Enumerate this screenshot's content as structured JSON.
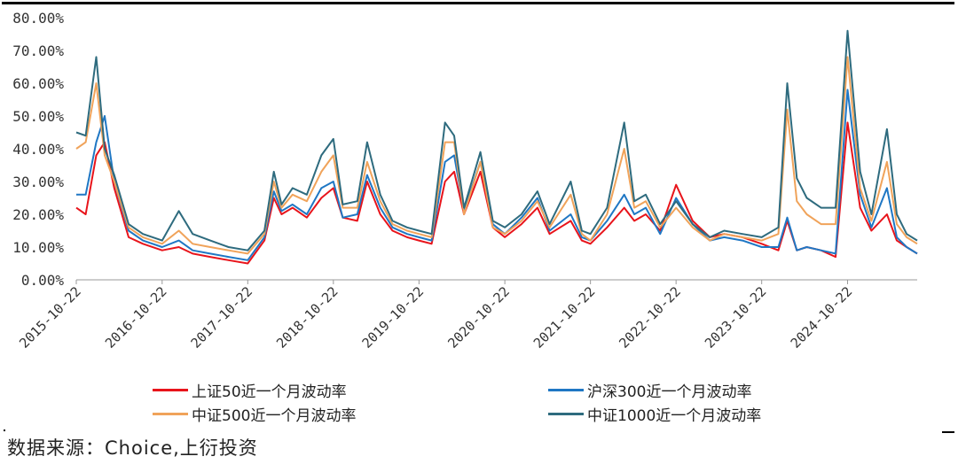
{
  "chart_data": {
    "type": "line",
    "title": "",
    "xlabel": "",
    "ylabel": "",
    "ylim": [
      0,
      0.8
    ],
    "y_ticks": [
      "0.00%",
      "10.00%",
      "20.00%",
      "30.00%",
      "40.00%",
      "50.00%",
      "60.00%",
      "70.00%",
      "80.00%"
    ],
    "x_ticks": [
      "2015-10-22",
      "2016-10-22",
      "2017-10-22",
      "2018-10-22",
      "2019-10-22",
      "2020-10-22",
      "2021-10-22",
      "2022-10-22",
      "2023-10-22",
      "2024-10-22"
    ],
    "x_range": [
      "2015-10-22",
      "2025-08-15"
    ],
    "grid": false,
    "legend_position": "bottom",
    "x": [
      "2015-10-22",
      "2015-12-01",
      "2016-01-15",
      "2016-02-20",
      "2016-04-01",
      "2016-06-01",
      "2016-08-01",
      "2016-10-22",
      "2017-01-01",
      "2017-03-01",
      "2017-05-15",
      "2017-08-01",
      "2017-10-22",
      "2018-01-01",
      "2018-02-10",
      "2018-03-15",
      "2018-05-01",
      "2018-07-01",
      "2018-09-01",
      "2018-10-22",
      "2018-12-01",
      "2019-02-01",
      "2019-03-15",
      "2019-05-10",
      "2019-07-01",
      "2019-09-01",
      "2019-10-22",
      "2019-12-15",
      "2020-02-10",
      "2020-03-20",
      "2020-05-01",
      "2020-07-10",
      "2020-09-01",
      "2020-10-22",
      "2021-01-01",
      "2021-03-10",
      "2021-05-01",
      "2021-07-30",
      "2021-09-15",
      "2021-10-22",
      "2022-01-01",
      "2022-03-15",
      "2022-04-27",
      "2022-06-15",
      "2022-08-15",
      "2022-10-22",
      "2023-01-01",
      "2023-03-15",
      "2023-05-15",
      "2023-08-01",
      "2023-10-22",
      "2024-01-01",
      "2024-02-08",
      "2024-03-20",
      "2024-05-01",
      "2024-07-01",
      "2024-09-01",
      "2024-10-22",
      "2024-12-15",
      "2025-02-01",
      "2025-04-08",
      "2025-05-20",
      "2025-07-01",
      "2025-08-15"
    ],
    "series": [
      {
        "name": "上证50近一个月波动率",
        "color": "#e8141b",
        "values": [
          0.22,
          0.2,
          0.38,
          0.42,
          0.28,
          0.13,
          0.11,
          0.09,
          0.1,
          0.08,
          0.07,
          0.06,
          0.05,
          0.12,
          0.25,
          0.2,
          0.22,
          0.19,
          0.25,
          0.28,
          0.19,
          0.18,
          0.3,
          0.2,
          0.15,
          0.13,
          0.12,
          0.11,
          0.3,
          0.33,
          0.2,
          0.33,
          0.16,
          0.13,
          0.17,
          0.22,
          0.14,
          0.18,
          0.12,
          0.11,
          0.16,
          0.22,
          0.18,
          0.2,
          0.15,
          0.29,
          0.18,
          0.13,
          0.14,
          0.13,
          0.11,
          0.09,
          0.18,
          0.09,
          0.1,
          0.09,
          0.07,
          0.48,
          0.22,
          0.15,
          0.2,
          0.12,
          0.1,
          0.08
        ]
      },
      {
        "name": "沪深300近一个月波动率",
        "color": "#1f77c4",
        "values": [
          0.26,
          0.26,
          0.42,
          0.5,
          0.3,
          0.15,
          0.12,
          0.1,
          0.12,
          0.09,
          0.08,
          0.07,
          0.06,
          0.13,
          0.27,
          0.21,
          0.23,
          0.2,
          0.28,
          0.3,
          0.19,
          0.2,
          0.32,
          0.22,
          0.16,
          0.14,
          0.13,
          0.12,
          0.36,
          0.38,
          0.21,
          0.36,
          0.17,
          0.14,
          0.19,
          0.25,
          0.15,
          0.2,
          0.13,
          0.12,
          0.18,
          0.26,
          0.2,
          0.22,
          0.14,
          0.25,
          0.17,
          0.12,
          0.13,
          0.12,
          0.1,
          0.1,
          0.19,
          0.09,
          0.1,
          0.09,
          0.08,
          0.58,
          0.26,
          0.16,
          0.28,
          0.13,
          0.1,
          0.08
        ]
      },
      {
        "name": "中证500近一个月波动率",
        "color": "#f0a35a",
        "values": [
          0.4,
          0.42,
          0.6,
          0.38,
          0.3,
          0.16,
          0.13,
          0.11,
          0.15,
          0.11,
          0.1,
          0.09,
          0.08,
          0.14,
          0.3,
          0.22,
          0.26,
          0.24,
          0.33,
          0.38,
          0.22,
          0.22,
          0.36,
          0.24,
          0.17,
          0.15,
          0.14,
          0.13,
          0.42,
          0.42,
          0.2,
          0.36,
          0.16,
          0.14,
          0.18,
          0.24,
          0.16,
          0.26,
          0.14,
          0.12,
          0.2,
          0.4,
          0.22,
          0.24,
          0.16,
          0.22,
          0.16,
          0.12,
          0.14,
          0.13,
          0.12,
          0.14,
          0.52,
          0.24,
          0.2,
          0.17,
          0.17,
          0.68,
          0.28,
          0.18,
          0.36,
          0.17,
          0.13,
          0.11
        ]
      },
      {
        "name": "中证1000近一个月波动率",
        "color": "#2e6b7e",
        "values": [
          0.45,
          0.44,
          0.68,
          0.4,
          0.32,
          0.17,
          0.14,
          0.12,
          0.21,
          0.14,
          0.12,
          0.1,
          0.09,
          0.15,
          0.33,
          0.23,
          0.28,
          0.26,
          0.38,
          0.43,
          0.23,
          0.24,
          0.42,
          0.26,
          0.18,
          0.16,
          0.15,
          0.14,
          0.48,
          0.44,
          0.22,
          0.39,
          0.18,
          0.16,
          0.2,
          0.27,
          0.17,
          0.3,
          0.15,
          0.14,
          0.22,
          0.48,
          0.24,
          0.26,
          0.17,
          0.24,
          0.17,
          0.13,
          0.15,
          0.14,
          0.13,
          0.16,
          0.6,
          0.31,
          0.25,
          0.22,
          0.22,
          0.76,
          0.33,
          0.2,
          0.46,
          0.2,
          0.14,
          0.12
        ]
      }
    ]
  },
  "source_note": "数据来源：Choice,上衍投资"
}
